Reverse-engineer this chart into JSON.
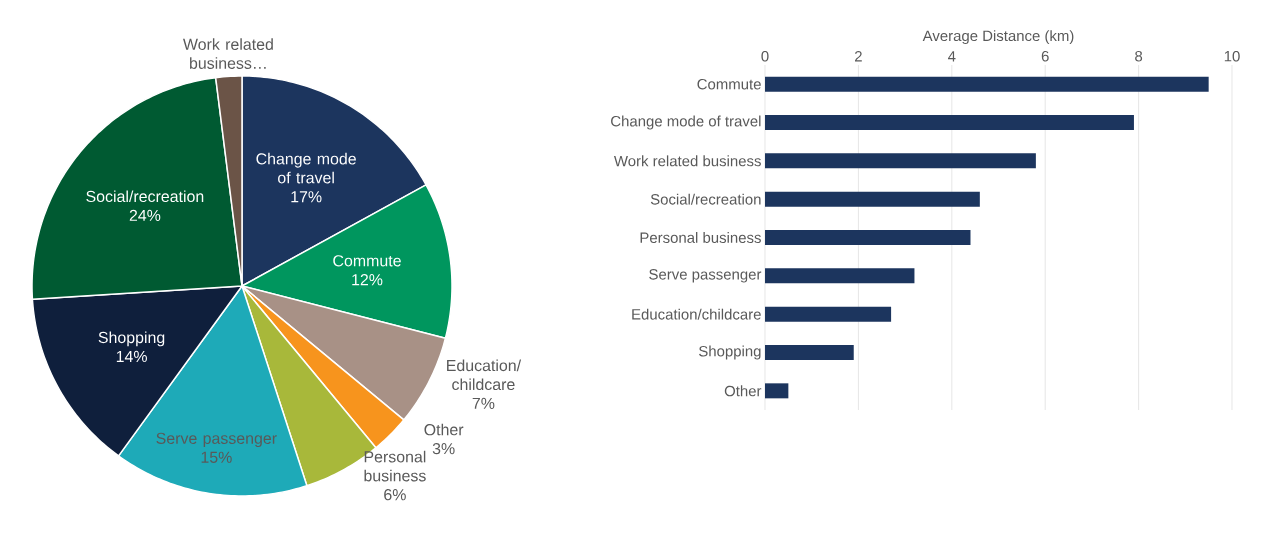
{
  "chart_data": [
    {
      "type": "pie",
      "categories": [
        "Change mode of travel",
        "Commute",
        "Education/ childcare",
        "Other",
        "Personal business",
        "Serve passenger",
        "Shopping",
        "Social/recreation",
        "Work related business…"
      ],
      "values": [
        17,
        12,
        7,
        3,
        6,
        15,
        14,
        24,
        2
      ],
      "value_labels": [
        "17%",
        "12%",
        "7%",
        "3%",
        "6%",
        "15%",
        "14%",
        "24%",
        null
      ],
      "colors": [
        "#1c355e",
        "#00965e",
        "#a89186",
        "#f7941d",
        "#a8b83a",
        "#1eaab8",
        "#0f1f3c",
        "#005a32",
        "#6b5447"
      ]
    },
    {
      "type": "bar",
      "orientation": "horizontal",
      "xlabel": "Average Distance (km)",
      "categories": [
        "Commute",
        "Change mode of travel",
        "Work related business",
        "Social/recreation",
        "Personal business",
        "Serve passenger",
        "Education/childcare",
        "Shopping",
        "Other"
      ],
      "values": [
        9.5,
        7.9,
        5.8,
        4.6,
        4.4,
        3.2,
        2.7,
        1.9,
        0.5
      ],
      "color": "#1c355e",
      "xlim": [
        0,
        10
      ],
      "xticks": [
        0,
        2,
        4,
        6,
        8,
        10
      ],
      "grid": "x"
    }
  ]
}
